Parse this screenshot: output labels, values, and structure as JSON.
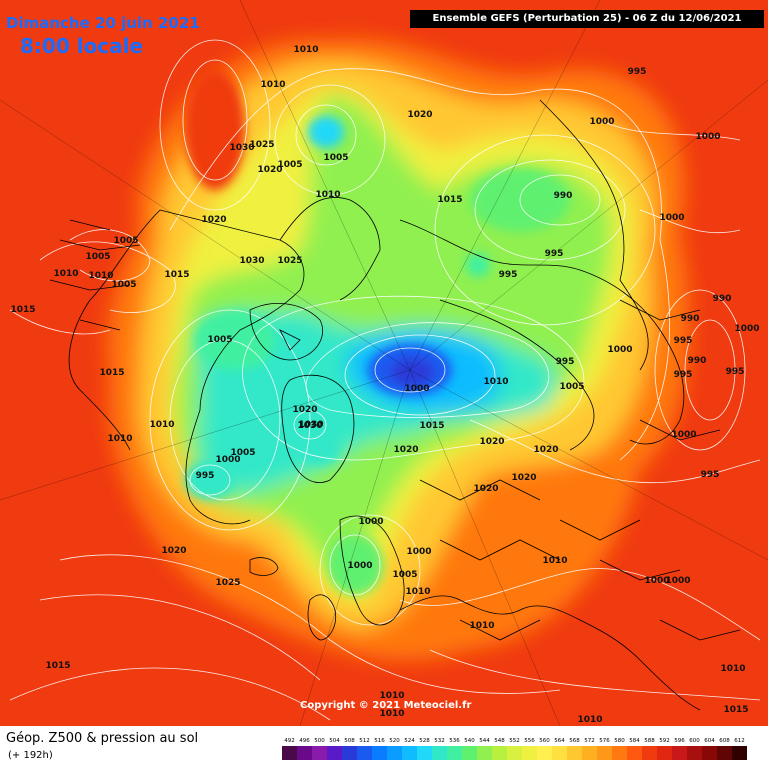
{
  "header": {
    "date": "Dimanche 20 juin 2021",
    "time": "8:00 locale",
    "run": "Ensemble GEFS  (Perturbation 25)  -  06 Z du 12/06/2021"
  },
  "footer": {
    "product": "Géop. Z500 & pression au sol",
    "lead": "(+ 192h)",
    "copyright": "Copyright © 2021 Meteociel.fr"
  },
  "colors": {
    "background": "#f03a10",
    "footer_bg": "#ffffff",
    "title": "#1a6cff",
    "isobar": "#ffffff",
    "coastline": "#000000"
  },
  "legend": {
    "ticks": [
      "492",
      "496",
      "500",
      "504",
      "508",
      "512",
      "516",
      "520",
      "524",
      "528",
      "532",
      "536",
      "540",
      "544",
      "548",
      "552",
      "556",
      "560",
      "564",
      "568",
      "572",
      "576",
      "580",
      "584",
      "588",
      "592",
      "596",
      "600",
      "604",
      "608",
      "612"
    ],
    "colors": [
      "#4a0a4a",
      "#6a0a8a",
      "#8a1aaa",
      "#5a1ac8",
      "#2a3ad8",
      "#1a5af0",
      "#0a7cff",
      "#0a9cff",
      "#10bcff",
      "#20d8f8",
      "#30e8c8",
      "#40f0a0",
      "#60f070",
      "#90f050",
      "#b8f040",
      "#d8f040",
      "#f0f040",
      "#fff050",
      "#ffe040",
      "#ffc830",
      "#ffb020",
      "#ff9818",
      "#ff7810",
      "#ff5810",
      "#f03a10",
      "#e02810",
      "#c81818",
      "#a81010",
      "#880808",
      "#600404",
      "#300000"
    ]
  },
  "isobars": [
    {
      "label": "1010"
    },
    {
      "label": "1010"
    },
    {
      "label": "1030"
    },
    {
      "label": "1025"
    },
    {
      "label": "1020"
    },
    {
      "label": "1005"
    },
    {
      "label": "1005"
    },
    {
      "label": "1010"
    },
    {
      "label": "1020"
    },
    {
      "label": "995"
    },
    {
      "label": "1000"
    },
    {
      "label": "1000"
    },
    {
      "label": "1000"
    },
    {
      "label": "1015"
    },
    {
      "label": "990"
    },
    {
      "label": "995"
    },
    {
      "label": "995"
    },
    {
      "label": "1020"
    },
    {
      "label": "1005"
    },
    {
      "label": "1010"
    },
    {
      "label": "1005"
    },
    {
      "label": "1010"
    },
    {
      "label": "1005"
    },
    {
      "label": "1015"
    },
    {
      "label": "1030"
    },
    {
      "label": "1025"
    },
    {
      "label": "1015"
    },
    {
      "label": "1005"
    },
    {
      "label": "1015"
    },
    {
      "label": "1010"
    },
    {
      "label": "1010"
    },
    {
      "label": "1000"
    },
    {
      "label": "1005"
    },
    {
      "label": "995"
    },
    {
      "label": "1020"
    },
    {
      "label": "1030"
    },
    {
      "label": "1030"
    },
    {
      "label": "1000"
    },
    {
      "label": "1015"
    },
    {
      "label": "1010"
    },
    {
      "label": "995"
    },
    {
      "label": "1005"
    },
    {
      "label": "1000"
    },
    {
      "label": "990"
    },
    {
      "label": "990"
    },
    {
      "label": "995"
    },
    {
      "label": "995"
    },
    {
      "label": "1000"
    },
    {
      "label": "990"
    },
    {
      "label": "995"
    },
    {
      "label": "1000"
    },
    {
      "label": "995"
    },
    {
      "label": "1020"
    },
    {
      "label": "1020"
    },
    {
      "label": "1020"
    },
    {
      "label": "1020"
    },
    {
      "label": "1020"
    },
    {
      "label": "1000"
    },
    {
      "label": "1000"
    },
    {
      "label": "1000"
    },
    {
      "label": "1005"
    },
    {
      "label": "1010"
    },
    {
      "label": "1010"
    },
    {
      "label": "1000"
    },
    {
      "label": "1000"
    },
    {
      "label": "1020"
    },
    {
      "label": "1025"
    },
    {
      "label": "1010"
    },
    {
      "label": "1015"
    },
    {
      "label": "1010"
    },
    {
      "label": "1010"
    },
    {
      "label": "1010"
    },
    {
      "label": "1010"
    },
    {
      "label": "1015"
    }
  ]
}
